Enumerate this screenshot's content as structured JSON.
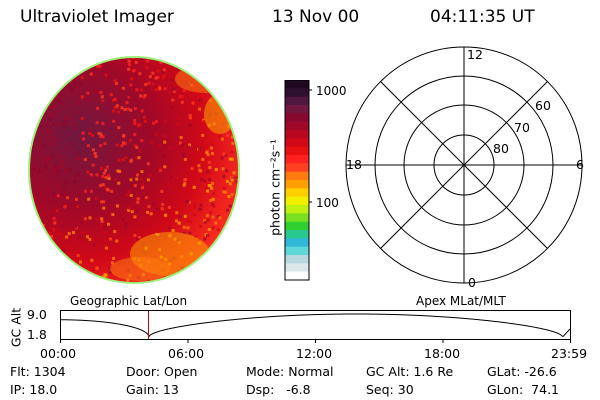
{
  "header": {
    "instrument": "Ultraviolet Imager",
    "date": "13 Nov 00",
    "time": "04:11:35 UT"
  },
  "colorbar": {
    "unit_label": "photon cm⁻²s⁻¹",
    "tick_1000": "1000",
    "tick_100": "100",
    "colors": [
      "#ffffff",
      "#dce8ec",
      "#b8d8e0",
      "#60d8d8",
      "#30b8d8",
      "#28c890",
      "#30d030",
      "#78e020",
      "#c0f010",
      "#f0f000",
      "#ffd000",
      "#ffa000",
      "#ff7a10",
      "#ff4020",
      "#ff2020",
      "#e81010",
      "#d00818",
      "#b80820",
      "#a00828",
      "#880830",
      "#701840",
      "#501840",
      "#301030",
      "#200820"
    ]
  },
  "polar_grid": {
    "mlt_12": "12",
    "mlt_18": "18",
    "mlt_6": "6",
    "mlt_0": "0",
    "lat_60": "60",
    "lat_70": "70",
    "lat_80": "80"
  },
  "orbit_panel": {
    "left_title": "Geographic Lat/Lon",
    "right_title": "Apex MLat/MLT",
    "y_axis_label": "GC Alt",
    "y_tick_top": "9.0",
    "y_tick_bottom": "1.8",
    "x_ticks": [
      "00:00",
      "06:00",
      "12:00",
      "18:00",
      "23:59"
    ]
  },
  "status": {
    "flt": "Flt: 1304",
    "ip": "IP: 18.0",
    "door": "Door: Open",
    "gain": "Gain: 13",
    "mode": "Mode: Normal",
    "dsp": "Dsp:   -6.8",
    "gc_alt": "GC Alt: 1.6 Re",
    "seq": "Seq: 30",
    "glat": "GLat: -26.6",
    "glon": "GLon:  74.1"
  }
}
